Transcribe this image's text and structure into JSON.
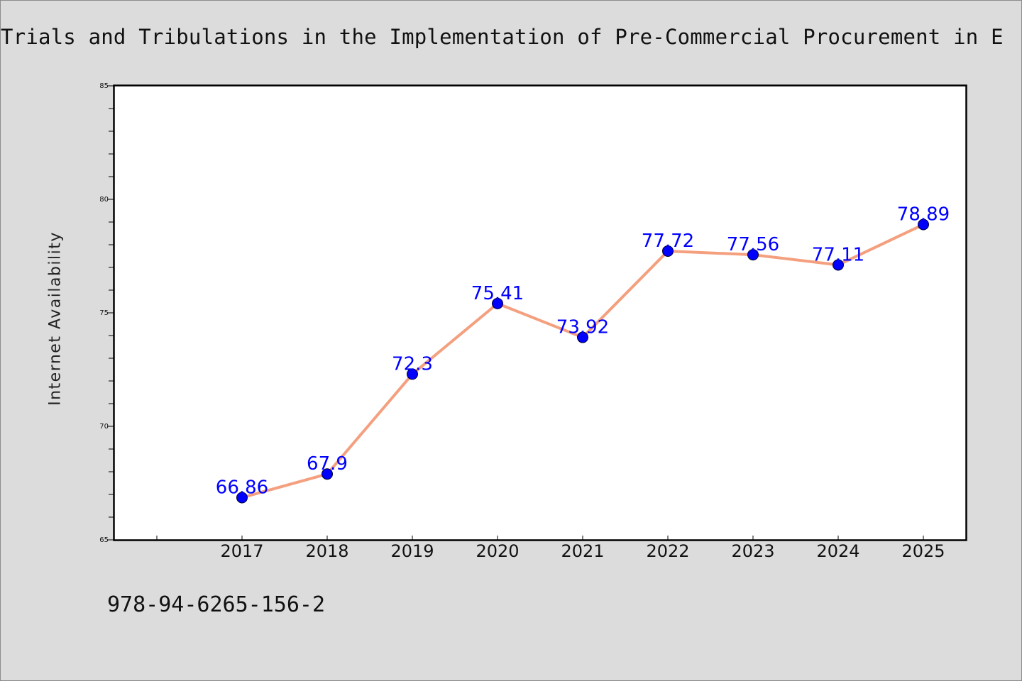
{
  "chart_data": {
    "type": "line",
    "title": "Trials and Tribulations in the Implementation of Pre-Commercial Procurement in E",
    "xlabel": "",
    "ylabel": "Internet Availability",
    "categories": [
      "2017",
      "2018",
      "2019",
      "2020",
      "2021",
      "2022",
      "2023",
      "2024",
      "2025"
    ],
    "series": [
      {
        "values": [
          66.86,
          67.9,
          72.3,
          75.41,
          73.92,
          77.72,
          77.56,
          77.11,
          78.89
        ],
        "data_labels": [
          "66.86",
          "67.9",
          "72.3",
          "75.41",
          "73.92",
          "77.72",
          "77.56",
          "77.11",
          "78.89"
        ],
        "line_color": "#f4a07f",
        "marker_color": "#0000ff"
      }
    ],
    "ylim": [
      65,
      85
    ],
    "yticks": [
      "65",
      "70",
      "75",
      "80",
      "85"
    ],
    "grid": false,
    "legend": "none"
  },
  "footer": {
    "isbn": "978-94-6265-156-2"
  }
}
